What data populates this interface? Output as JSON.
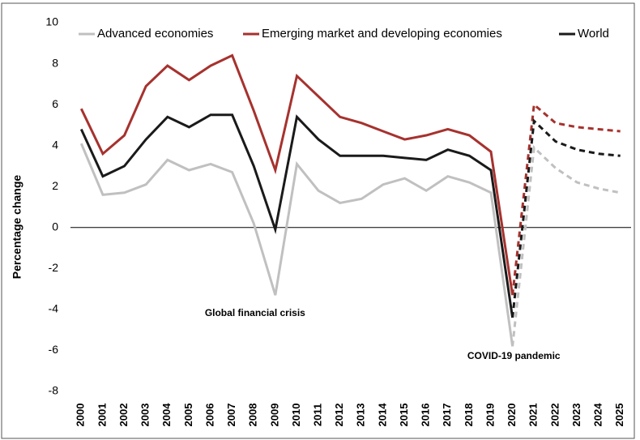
{
  "chart_data": {
    "type": "line",
    "y_label": "Percentage change",
    "categories": [
      "2000",
      "2001",
      "2002",
      "2003",
      "2004",
      "2005",
      "2006",
      "2007",
      "2008",
      "2009",
      "2010",
      "2011",
      "2012",
      "2013",
      "2014",
      "2015",
      "2016",
      "2017",
      "2018",
      "2019",
      "2020",
      "2021",
      "2022",
      "2023",
      "2024",
      "2025"
    ],
    "series": [
      {
        "name": "Advanced economies",
        "color": "#c0c0c0",
        "dashed_from": 20,
        "values": [
          4.1,
          1.6,
          1.7,
          2.1,
          3.3,
          2.8,
          3.1,
          2.7,
          0.2,
          -3.3,
          3.1,
          1.8,
          1.2,
          1.4,
          2.1,
          2.4,
          1.8,
          2.5,
          2.2,
          1.7,
          -5.8,
          3.9,
          2.9,
          2.2,
          1.9,
          1.7
        ]
      },
      {
        "name": "Emerging market and developing economies",
        "color": "#a6322e",
        "dashed_from": 20,
        "values": [
          5.8,
          3.6,
          4.5,
          6.9,
          7.9,
          7.2,
          7.9,
          8.4,
          5.7,
          2.8,
          7.4,
          6.4,
          5.4,
          5.1,
          4.7,
          4.3,
          4.5,
          4.8,
          4.5,
          3.7,
          -3.3,
          6.0,
          5.1,
          4.9,
          4.8,
          4.7
        ]
      },
      {
        "name": "World",
        "color": "#1a1a1a",
        "dashed_from": 20,
        "values": [
          4.8,
          2.5,
          3.0,
          4.3,
          5.4,
          4.9,
          5.5,
          5.5,
          3.0,
          -0.1,
          5.4,
          4.3,
          3.5,
          3.5,
          3.5,
          3.4,
          3.3,
          3.8,
          3.5,
          2.8,
          -4.4,
          5.2,
          4.2,
          3.8,
          3.6,
          3.5
        ]
      }
    ],
    "ylim": [
      -8,
      10
    ],
    "yticks": [
      -8,
      -6,
      -4,
      -2,
      0,
      2,
      4,
      6,
      8,
      10
    ],
    "annotations": [
      {
        "text": "Global financial crisis",
        "x": 9,
        "y": -4.2
      },
      {
        "text": "COVID-19 pandemic",
        "x": 21,
        "y": -6.3
      }
    ]
  }
}
